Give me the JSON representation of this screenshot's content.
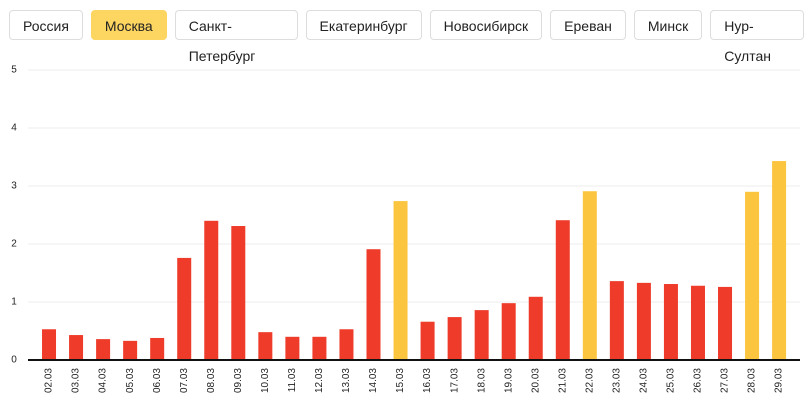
{
  "tabs": [
    "Россия",
    "Москва",
    "Санкт-Петербург",
    "Екатеринбург",
    "Новосибирск",
    "Ереван",
    "Минск",
    "Нур-Султан"
  ],
  "selected_tab": 1,
  "chart_data": {
    "type": "bar",
    "categories": [
      "02.03",
      "03.03",
      "04.03",
      "05.03",
      "06.03",
      "07.03",
      "08.03",
      "09.03",
      "10.03",
      "11.03",
      "12.03",
      "13.03",
      "14.03",
      "15.03",
      "16.03",
      "17.03",
      "18.03",
      "19.03",
      "20.03",
      "21.03",
      "22.03",
      "23.03",
      "24.03",
      "25.03",
      "26.03",
      "27.03",
      "28.03",
      "29.03"
    ],
    "values": [
      0.53,
      0.43,
      0.36,
      0.33,
      0.38,
      1.76,
      2.4,
      2.31,
      0.48,
      0.4,
      0.4,
      0.53,
      1.91,
      2.74,
      0.66,
      0.74,
      0.86,
      0.98,
      1.09,
      2.41,
      2.91,
      1.36,
      1.33,
      1.31,
      1.28,
      1.26,
      2.9,
      3.43
    ],
    "colors": [
      "#ef3b2a",
      "#ef3b2a",
      "#ef3b2a",
      "#ef3b2a",
      "#ef3b2a",
      "#ef3b2a",
      "#ef3b2a",
      "#ef3b2a",
      "#ef3b2a",
      "#ef3b2a",
      "#ef3b2a",
      "#ef3b2a",
      "#ef3b2a",
      "#fbc540",
      "#ef3b2a",
      "#ef3b2a",
      "#ef3b2a",
      "#ef3b2a",
      "#ef3b2a",
      "#ef3b2a",
      "#fbc540",
      "#ef3b2a",
      "#ef3b2a",
      "#ef3b2a",
      "#ef3b2a",
      "#ef3b2a",
      "#fbc540",
      "#fbc540"
    ],
    "ylim": [
      0,
      5
    ],
    "yticks": [
      0,
      1,
      2,
      3,
      4,
      5
    ],
    "grid": true
  }
}
